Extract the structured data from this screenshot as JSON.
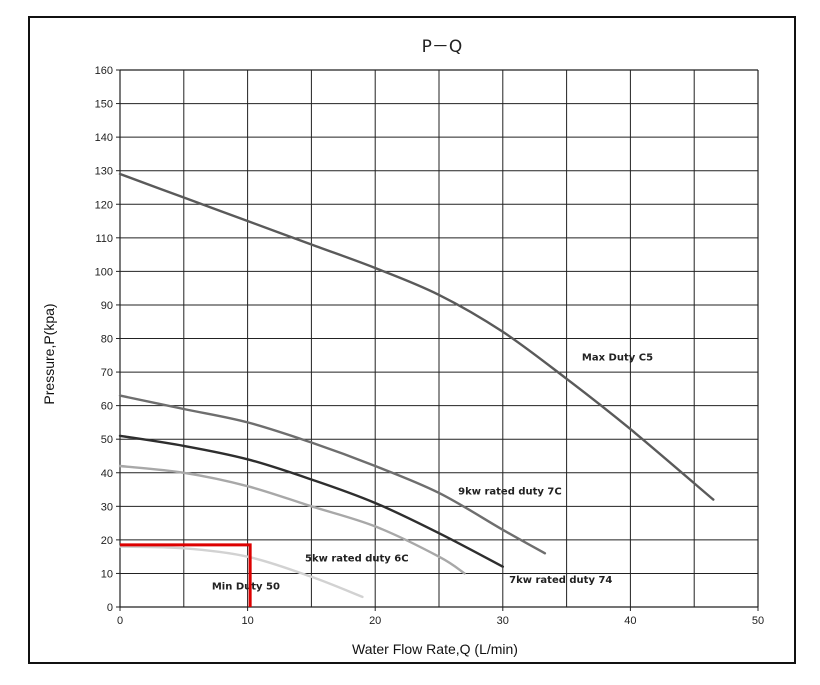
{
  "chart_data": {
    "type": "line",
    "title": "P－Q",
    "xlabel": "Water Flow Rate,Q (L/min)",
    "ylabel": "Pressure,P(kpa)",
    "xlim": [
      0,
      50
    ],
    "ylim": [
      0,
      160
    ],
    "x_ticks": [
      "0",
      "10",
      "20",
      "30",
      "40",
      "50"
    ],
    "y_ticks": [
      "0",
      "10",
      "20",
      "30",
      "40",
      "50",
      "60",
      "70",
      "80",
      "90",
      "100",
      "110",
      "120",
      "130",
      "140",
      "150",
      "160"
    ],
    "grid": true,
    "series": [
      {
        "name": "Max Duty C5",
        "color": "#5a5a5a",
        "x": [
          0,
          5,
          10,
          15,
          20,
          25,
          30,
          35,
          40,
          46.5
        ],
        "y": [
          129,
          122,
          115,
          108,
          101,
          93,
          82,
          68,
          53,
          32
        ]
      },
      {
        "name": "9kw rated duty 7C",
        "color": "#6e6e6e",
        "x": [
          0,
          5,
          10,
          15,
          20,
          25,
          30,
          33.3
        ],
        "y": [
          63,
          59,
          55,
          49,
          42,
          34,
          23,
          16
        ]
      },
      {
        "name": "7kw rated duty 74",
        "color": "#2e2e2e",
        "x": [
          0,
          5,
          10,
          15,
          20,
          25,
          30
        ],
        "y": [
          51,
          48,
          44,
          38,
          31,
          22,
          12
        ]
      },
      {
        "name": "5kw rated duty 6C",
        "color": "#a8a8a8",
        "x": [
          0,
          5,
          10,
          15,
          20,
          25,
          27
        ],
        "y": [
          42,
          40,
          36,
          30,
          24,
          15,
          10
        ]
      },
      {
        "name": "Min Duty 50",
        "color": "#d2d2d2",
        "x": [
          0,
          5,
          10,
          15,
          19
        ],
        "y": [
          18,
          17.5,
          15,
          9,
          3
        ]
      }
    ],
    "annotation": {
      "type": "duty-point-marker",
      "color": "#dd0000",
      "x": 10.2,
      "y": 18.5
    }
  }
}
